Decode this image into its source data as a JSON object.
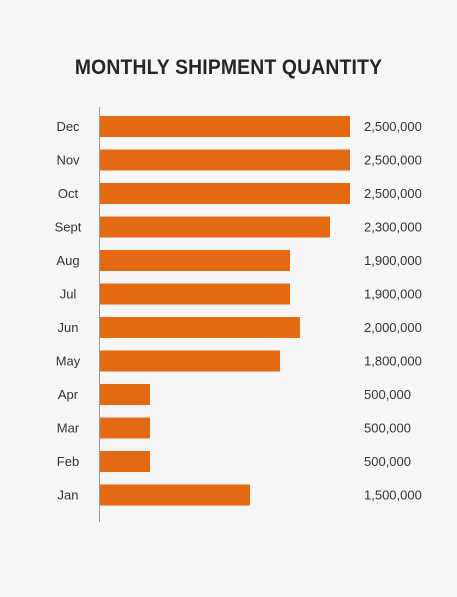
{
  "chart_data": {
    "type": "bar",
    "orientation": "horizontal",
    "title": "MONTHLY SHIPMENT QUANTITY",
    "categories": [
      "Dec",
      "Nov",
      "Oct",
      "Sept",
      "Aug",
      "Jul",
      "Jun",
      "May",
      "Apr",
      "Mar",
      "Feb",
      "Jan"
    ],
    "values": [
      2500000,
      2500000,
      2500000,
      2300000,
      1900000,
      1900000,
      2000000,
      1800000,
      500000,
      500000,
      500000,
      1500000
    ],
    "value_labels": [
      "2,500,000",
      "2,500,000",
      "2,500,000",
      "2,300,000",
      "1,900,000",
      "1,900,000",
      "2,000,000",
      "1,800,000",
      "500,000",
      "500,000",
      "500,000",
      "1,500,000"
    ],
    "xlim": [
      0,
      2500000
    ],
    "grid": false,
    "legend": "none",
    "bar_color": "#e36912",
    "axis_color": "#999999"
  }
}
